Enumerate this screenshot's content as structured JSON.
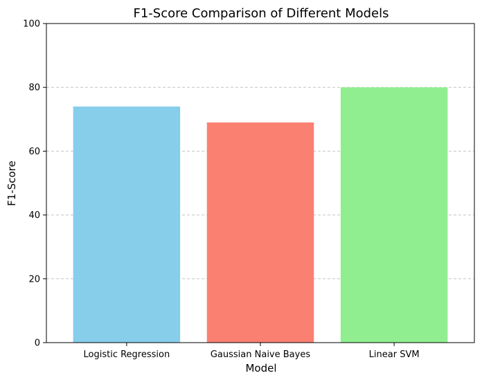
{
  "chart_data": {
    "type": "bar",
    "title": "F1-Score Comparison of Different Models",
    "xlabel": "Model",
    "ylabel": "F1-Score",
    "categories": [
      "Logistic Regression",
      "Gaussian Naive Bayes",
      "Linear SVM"
    ],
    "values": [
      74,
      69,
      80
    ],
    "colors": [
      "#87ceeb",
      "#fa8072",
      "#90ee90"
    ],
    "ylim": [
      0,
      100
    ],
    "yticks": [
      0,
      20,
      40,
      60,
      80,
      100
    ],
    "grid": "horizontal dashed (y-axis)",
    "legend": "none"
  }
}
